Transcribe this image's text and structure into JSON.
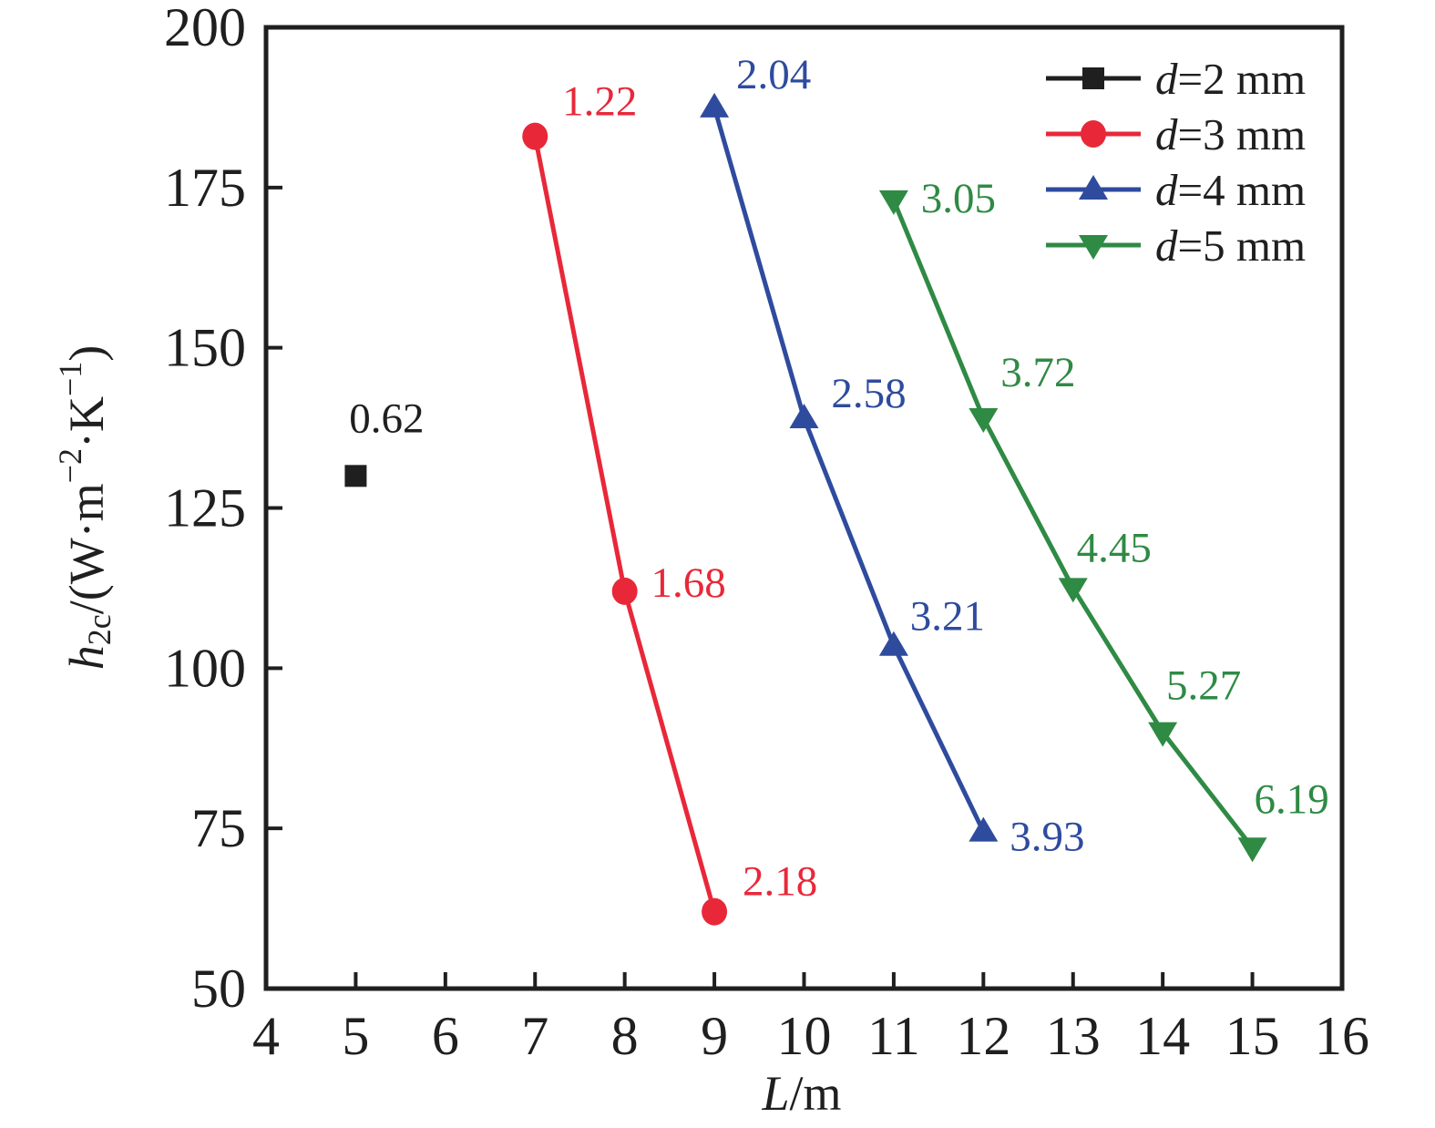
{
  "figure": {
    "background": "#ffffff",
    "axis_color": "#1f1f1f"
  },
  "chart_data": {
    "type": "scatter",
    "title": "",
    "xlabel_italic": "L",
    "xlabel_rest": "/m",
    "ylabel_plain": "h2c/(W·m−2·K−1)",
    "ylabel_parts": [
      {
        "text": "h",
        "style": "italic"
      },
      {
        "text": "2c",
        "style": "sub"
      },
      {
        "text": "/(W·m",
        "style": "normal"
      },
      {
        "text": "−2",
        "style": "sup"
      },
      {
        "text": "·K",
        "style": "normal"
      },
      {
        "text": "−1",
        "style": "sup"
      },
      {
        "text": ")",
        "style": "normal"
      }
    ],
    "xlim": [
      4,
      16
    ],
    "ylim": [
      50,
      200
    ],
    "x_ticks": [
      "4",
      "5",
      "6",
      "7",
      "8",
      "9",
      "10",
      "11",
      "12",
      "13",
      "14",
      "15",
      "16"
    ],
    "y_ticks": [
      "50",
      "75",
      "100",
      "125",
      "150",
      "175",
      "200"
    ],
    "grid": false,
    "legend_position": "top-right",
    "series": [
      {
        "id": "d2",
        "legend_italic": "d",
        "legend_rest": "=2 mm",
        "color": "#1f1f1f",
        "marker": "square",
        "points": [
          {
            "x": 5,
            "y": 130,
            "label": "0.62",
            "label_dx": 34,
            "label_dy": -63
          }
        ]
      },
      {
        "id": "d3",
        "legend_italic": "d",
        "legend_rest": "=3 mm",
        "color": "#e82839",
        "marker": "circle",
        "points": [
          {
            "x": 7,
            "y": 183,
            "label": "1.22",
            "label_dx": 71,
            "label_dy": -38
          },
          {
            "x": 8,
            "y": 112,
            "label": "1.68",
            "label_dx": 70,
            "label_dy": -9
          },
          {
            "x": 9,
            "y": 62,
            "label": "2.18",
            "label_dx": 72,
            "label_dy": -33
          }
        ]
      },
      {
        "id": "d4",
        "legend_italic": "d",
        "legend_rest": "=4 mm",
        "color": "#2e4b9e",
        "marker": "triangle-up",
        "points": [
          {
            "x": 9,
            "y": 187.5,
            "label": "2.04",
            "label_dx": 65,
            "label_dy": -36
          },
          {
            "x": 10,
            "y": 139,
            "label": "2.58",
            "label_dx": 71,
            "label_dy": -27
          },
          {
            "x": 11,
            "y": 103.5,
            "label": "3.21",
            "label_dx": 59,
            "label_dy": -32
          },
          {
            "x": 12,
            "y": 74.5,
            "label": "3.93",
            "label_dx": 70,
            "label_dy": 6
          }
        ]
      },
      {
        "id": "d5",
        "legend_italic": "d",
        "legend_rest": "=5 mm",
        "color": "#2f8a44",
        "marker": "triangle-down",
        "points": [
          {
            "x": 11,
            "y": 173,
            "label": "3.05",
            "label_dx": 71,
            "label_dy": -2
          },
          {
            "x": 12,
            "y": 139,
            "label": "3.72",
            "label_dx": 60,
            "label_dy": -50
          },
          {
            "x": 13,
            "y": 112.5,
            "label": "4.45",
            "label_dx": 45,
            "label_dy": -44
          },
          {
            "x": 14,
            "y": 90,
            "label": "5.27",
            "label_dx": 45,
            "label_dy": -51
          },
          {
            "x": 15,
            "y": 72,
            "label": "6.19",
            "label_dx": 43,
            "label_dy": -53
          }
        ]
      }
    ]
  }
}
